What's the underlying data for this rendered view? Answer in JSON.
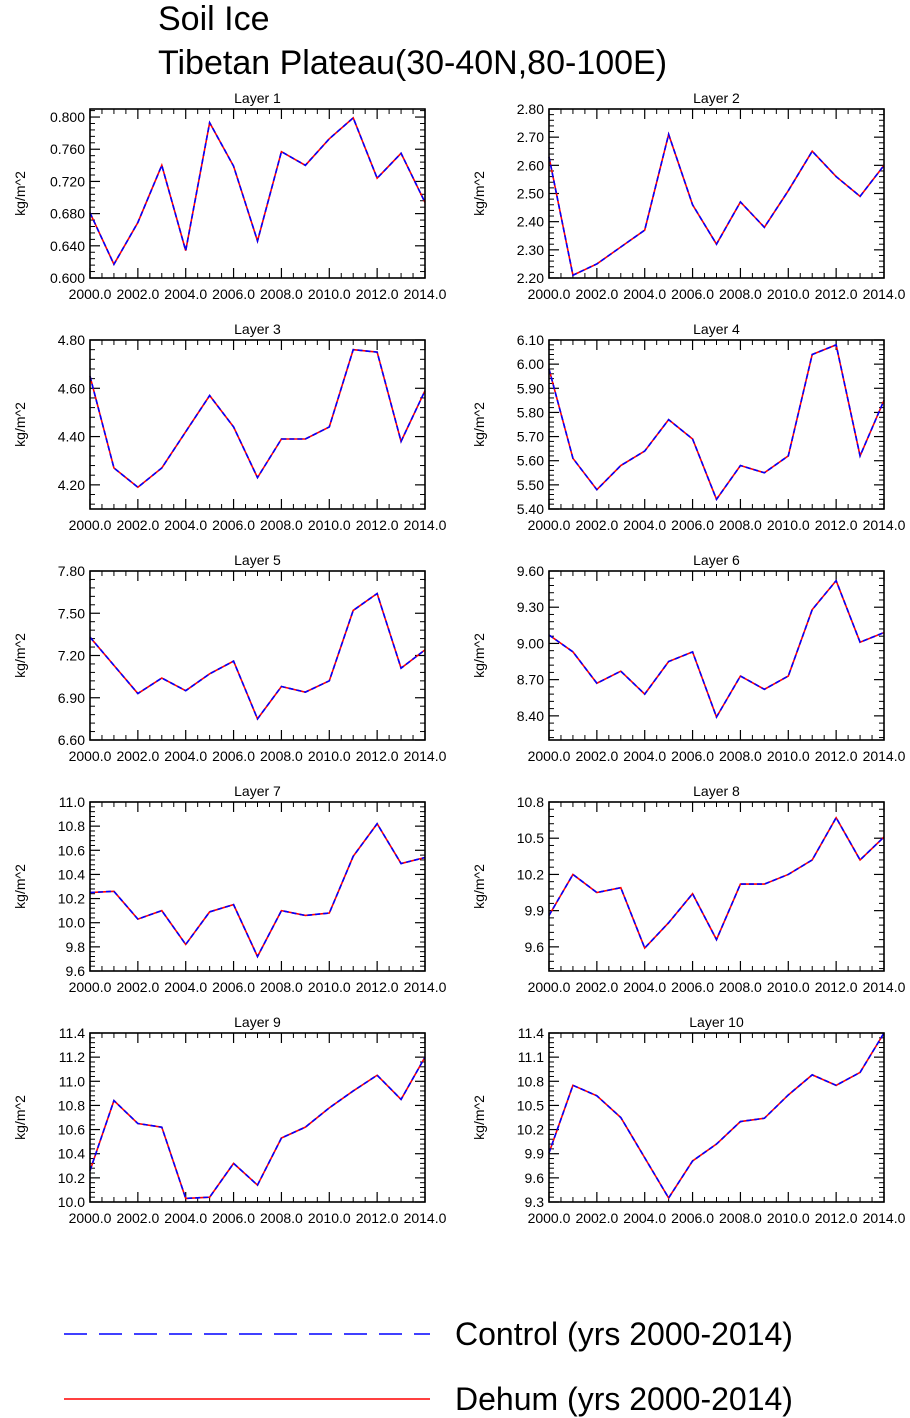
{
  "figure": {
    "title_line1": "Soil Ice",
    "title_line2": "Tibetan Plateau(30-40N,80-100E)"
  },
  "legend": [
    {
      "label": "Control (yrs 2000-2014)",
      "color": "#0000ff",
      "style": "dashed"
    },
    {
      "label": "Dehum (yrs 2000-2014)",
      "color": "#ff0000",
      "style": "solid"
    }
  ],
  "chart_data": [
    {
      "type": "line",
      "title": "Layer 1",
      "ylabel": "kg/m^2",
      "x": [
        2000,
        2001,
        2002,
        2003,
        2004,
        2005,
        2006,
        2007,
        2008,
        2009,
        2010,
        2011,
        2012,
        2013,
        2014
      ],
      "xticks": [
        "2000.0",
        "2002.0",
        "2004.0",
        "2006.0",
        "2008.0",
        "2010.0",
        "2012.0",
        "2014.0"
      ],
      "ylim": [
        0.6,
        0.81
      ],
      "yticks": [
        "0.600",
        "0.640",
        "0.680",
        "0.720",
        "0.760",
        "0.800"
      ],
      "series": [
        {
          "name": "Control (yrs 2000-2014)",
          "values": [
            0.681,
            0.617,
            0.669,
            0.74,
            0.634,
            0.793,
            0.739,
            0.646,
            0.757,
            0.74,
            0.773,
            0.799,
            0.724,
            0.755,
            0.694
          ]
        },
        {
          "name": "Dehum (yrs 2000-2014)",
          "values": [
            0.681,
            0.617,
            0.669,
            0.74,
            0.634,
            0.793,
            0.739,
            0.646,
            0.757,
            0.74,
            0.773,
            0.799,
            0.724,
            0.755,
            0.694
          ]
        }
      ]
    },
    {
      "type": "line",
      "title": "Layer 2",
      "ylabel": "kg/m^2",
      "x": [
        2000,
        2001,
        2002,
        2003,
        2004,
        2005,
        2006,
        2007,
        2008,
        2009,
        2010,
        2011,
        2012,
        2013,
        2014
      ],
      "xticks": [
        "2000.0",
        "2002.0",
        "2004.0",
        "2006.0",
        "2008.0",
        "2010.0",
        "2012.0",
        "2014.0"
      ],
      "ylim": [
        2.2,
        2.8
      ],
      "yticks": [
        "2.20",
        "2.30",
        "2.40",
        "2.50",
        "2.60",
        "2.70",
        "2.80"
      ],
      "series": [
        {
          "name": "Control (yrs 2000-2014)",
          "values": [
            2.63,
            2.21,
            2.25,
            2.31,
            2.37,
            2.71,
            2.46,
            2.32,
            2.47,
            2.38,
            2.51,
            2.65,
            2.56,
            2.49,
            2.6
          ]
        },
        {
          "name": "Dehum (yrs 2000-2014)",
          "values": [
            2.63,
            2.21,
            2.25,
            2.31,
            2.37,
            2.71,
            2.46,
            2.32,
            2.47,
            2.38,
            2.51,
            2.65,
            2.56,
            2.49,
            2.6
          ]
        }
      ]
    },
    {
      "type": "line",
      "title": "Layer 3",
      "ylabel": "kg/m^2",
      "x": [
        2000,
        2001,
        2002,
        2003,
        2004,
        2005,
        2006,
        2007,
        2008,
        2009,
        2010,
        2011,
        2012,
        2013,
        2014
      ],
      "xticks": [
        "2000.0",
        "2002.0",
        "2004.0",
        "2006.0",
        "2008.0",
        "2010.0",
        "2012.0",
        "2014.0"
      ],
      "ylim": [
        4.1,
        4.8
      ],
      "yticks": [
        "4.20",
        "4.40",
        "4.60",
        "4.80"
      ],
      "series": [
        {
          "name": "Control (yrs 2000-2014)",
          "values": [
            4.65,
            4.27,
            4.19,
            4.27,
            4.42,
            4.57,
            4.44,
            4.23,
            4.39,
            4.39,
            4.44,
            4.76,
            4.75,
            4.38,
            4.59
          ]
        },
        {
          "name": "Dehum (yrs 2000-2014)",
          "values": [
            4.65,
            4.27,
            4.19,
            4.27,
            4.42,
            4.57,
            4.44,
            4.23,
            4.39,
            4.39,
            4.44,
            4.76,
            4.75,
            4.38,
            4.59
          ]
        }
      ]
    },
    {
      "type": "line",
      "title": "Layer 4",
      "ylabel": "kg/m^2",
      "x": [
        2000,
        2001,
        2002,
        2003,
        2004,
        2005,
        2006,
        2007,
        2008,
        2009,
        2010,
        2011,
        2012,
        2013,
        2014
      ],
      "xticks": [
        "2000.0",
        "2002.0",
        "2004.0",
        "2006.0",
        "2008.0",
        "2010.0",
        "2012.0",
        "2014.0"
      ],
      "ylim": [
        5.4,
        6.1
      ],
      "yticks": [
        "5.40",
        "5.50",
        "5.60",
        "5.70",
        "5.80",
        "5.90",
        "6.00",
        "6.10"
      ],
      "series": [
        {
          "name": "Control (yrs 2000-2014)",
          "values": [
            5.98,
            5.61,
            5.48,
            5.58,
            5.64,
            5.77,
            5.69,
            5.44,
            5.58,
            5.55,
            5.62,
            6.04,
            6.08,
            5.62,
            5.85
          ]
        },
        {
          "name": "Dehum (yrs 2000-2014)",
          "values": [
            5.98,
            5.61,
            5.48,
            5.58,
            5.64,
            5.77,
            5.69,
            5.44,
            5.58,
            5.55,
            5.62,
            6.04,
            6.08,
            5.62,
            5.85
          ]
        }
      ]
    },
    {
      "type": "line",
      "title": "Layer 5",
      "ylabel": "kg/m^2",
      "x": [
        2000,
        2001,
        2002,
        2003,
        2004,
        2005,
        2006,
        2007,
        2008,
        2009,
        2010,
        2011,
        2012,
        2013,
        2014
      ],
      "xticks": [
        "2000.0",
        "2002.0",
        "2004.0",
        "2006.0",
        "2008.0",
        "2010.0",
        "2012.0",
        "2014.0"
      ],
      "ylim": [
        6.6,
        7.8
      ],
      "yticks": [
        "6.60",
        "6.90",
        "7.20",
        "7.50",
        "7.80"
      ],
      "series": [
        {
          "name": "Control (yrs 2000-2014)",
          "values": [
            7.33,
            7.13,
            6.93,
            7.04,
            6.95,
            7.07,
            7.16,
            6.75,
            6.98,
            6.94,
            7.02,
            7.52,
            7.64,
            7.11,
            7.24
          ]
        },
        {
          "name": "Dehum (yrs 2000-2014)",
          "values": [
            7.33,
            7.13,
            6.93,
            7.04,
            6.95,
            7.07,
            7.16,
            6.75,
            6.98,
            6.94,
            7.02,
            7.52,
            7.64,
            7.11,
            7.24
          ]
        }
      ]
    },
    {
      "type": "line",
      "title": "Layer 6",
      "ylabel": "kg/m^2",
      "x": [
        2000,
        2001,
        2002,
        2003,
        2004,
        2005,
        2006,
        2007,
        2008,
        2009,
        2010,
        2011,
        2012,
        2013,
        2014
      ],
      "xticks": [
        "2000.0",
        "2002.0",
        "2004.0",
        "2006.0",
        "2008.0",
        "2010.0",
        "2012.0",
        "2014.0"
      ],
      "ylim": [
        8.2,
        9.6
      ],
      "yticks": [
        "8.40",
        "8.70",
        "9.00",
        "9.30",
        "9.60"
      ],
      "series": [
        {
          "name": "Control (yrs 2000-2014)",
          "values": [
            9.07,
            8.93,
            8.67,
            8.77,
            8.58,
            8.85,
            8.93,
            8.39,
            8.73,
            8.62,
            8.73,
            9.28,
            9.52,
            9.01,
            9.09
          ]
        },
        {
          "name": "Dehum (yrs 2000-2014)",
          "values": [
            9.07,
            8.93,
            8.67,
            8.77,
            8.58,
            8.85,
            8.93,
            8.39,
            8.73,
            8.62,
            8.73,
            9.28,
            9.52,
            9.01,
            9.09
          ]
        }
      ]
    },
    {
      "type": "line",
      "title": "Layer 7",
      "ylabel": "kg/m^2",
      "x": [
        2000,
        2001,
        2002,
        2003,
        2004,
        2005,
        2006,
        2007,
        2008,
        2009,
        2010,
        2011,
        2012,
        2013,
        2014
      ],
      "xticks": [
        "2000.0",
        "2002.0",
        "2004.0",
        "2006.0",
        "2008.0",
        "2010.0",
        "2012.0",
        "2014.0"
      ],
      "ylim": [
        9.6,
        11.0
      ],
      "yticks": [
        "9.6",
        "9.8",
        "10.0",
        "10.2",
        "10.4",
        "10.6",
        "10.8",
        "11.0"
      ],
      "series": [
        {
          "name": "Control (yrs 2000-2014)",
          "values": [
            10.25,
            10.26,
            10.03,
            10.1,
            9.82,
            10.09,
            10.15,
            9.72,
            10.1,
            10.06,
            10.08,
            10.55,
            10.82,
            10.49,
            10.54
          ]
        },
        {
          "name": "Dehum (yrs 2000-2014)",
          "values": [
            10.25,
            10.26,
            10.03,
            10.1,
            9.82,
            10.09,
            10.15,
            9.72,
            10.1,
            10.06,
            10.08,
            10.55,
            10.82,
            10.49,
            10.54
          ]
        }
      ]
    },
    {
      "type": "line",
      "title": "Layer 8",
      "ylabel": "kg/m^2",
      "x": [
        2000,
        2001,
        2002,
        2003,
        2004,
        2005,
        2006,
        2007,
        2008,
        2009,
        2010,
        2011,
        2012,
        2013,
        2014
      ],
      "xticks": [
        "2000.0",
        "2002.0",
        "2004.0",
        "2006.0",
        "2008.0",
        "2010.0",
        "2012.0",
        "2014.0"
      ],
      "ylim": [
        9.4,
        10.8
      ],
      "yticks": [
        "9.6",
        "9.9",
        "10.2",
        "10.5",
        "10.8"
      ],
      "series": [
        {
          "name": "Control (yrs 2000-2014)",
          "values": [
            9.86,
            10.2,
            10.05,
            10.09,
            9.59,
            9.8,
            10.04,
            9.66,
            10.12,
            10.12,
            10.2,
            10.32,
            10.67,
            10.32,
            10.51
          ]
        },
        {
          "name": "Dehum (yrs 2000-2014)",
          "values": [
            9.86,
            10.2,
            10.05,
            10.09,
            9.59,
            9.8,
            10.04,
            9.66,
            10.12,
            10.12,
            10.2,
            10.32,
            10.67,
            10.32,
            10.51
          ]
        }
      ]
    },
    {
      "type": "line",
      "title": "Layer 9",
      "ylabel": "kg/m^2",
      "x": [
        2000,
        2001,
        2002,
        2003,
        2004,
        2005,
        2006,
        2007,
        2008,
        2009,
        2010,
        2011,
        2012,
        2013,
        2014
      ],
      "xticks": [
        "2000.0",
        "2002.0",
        "2004.0",
        "2006.0",
        "2008.0",
        "2010.0",
        "2012.0",
        "2014.0"
      ],
      "ylim": [
        10.0,
        11.4
      ],
      "yticks": [
        "10.0",
        "10.2",
        "10.4",
        "10.6",
        "10.8",
        "11.0",
        "11.2",
        "11.4"
      ],
      "series": [
        {
          "name": "Control (yrs 2000-2014)",
          "values": [
            10.26,
            10.84,
            10.65,
            10.62,
            10.03,
            10.04,
            10.32,
            10.14,
            10.53,
            10.62,
            10.78,
            10.92,
            11.05,
            10.85,
            11.2
          ]
        },
        {
          "name": "Dehum (yrs 2000-2014)",
          "values": [
            10.26,
            10.84,
            10.65,
            10.62,
            10.03,
            10.04,
            10.32,
            10.14,
            10.53,
            10.62,
            10.78,
            10.92,
            11.05,
            10.85,
            11.2
          ]
        }
      ]
    },
    {
      "type": "line",
      "title": "Layer 10",
      "ylabel": "kg/m^2",
      "x": [
        2000,
        2001,
        2002,
        2003,
        2004,
        2005,
        2006,
        2007,
        2008,
        2009,
        2010,
        2011,
        2012,
        2013,
        2014
      ],
      "xticks": [
        "2000.0",
        "2002.0",
        "2004.0",
        "2006.0",
        "2008.0",
        "2010.0",
        "2012.0",
        "2014.0"
      ],
      "ylim": [
        9.3,
        11.4
      ],
      "yticks": [
        "9.3",
        "9.6",
        "9.9",
        "10.2",
        "10.5",
        "10.8",
        "11.1",
        "11.4"
      ],
      "series": [
        {
          "name": "Control (yrs 2000-2014)",
          "values": [
            9.91,
            10.75,
            10.62,
            10.35,
            9.85,
            9.35,
            9.81,
            10.02,
            10.3,
            10.34,
            10.63,
            10.88,
            10.75,
            10.91,
            11.4
          ]
        },
        {
          "name": "Dehum (yrs 2000-2014)",
          "values": [
            9.91,
            10.75,
            10.62,
            10.35,
            9.85,
            9.35,
            9.81,
            10.02,
            10.3,
            10.34,
            10.63,
            10.88,
            10.75,
            10.91,
            11.4
          ]
        }
      ]
    }
  ]
}
